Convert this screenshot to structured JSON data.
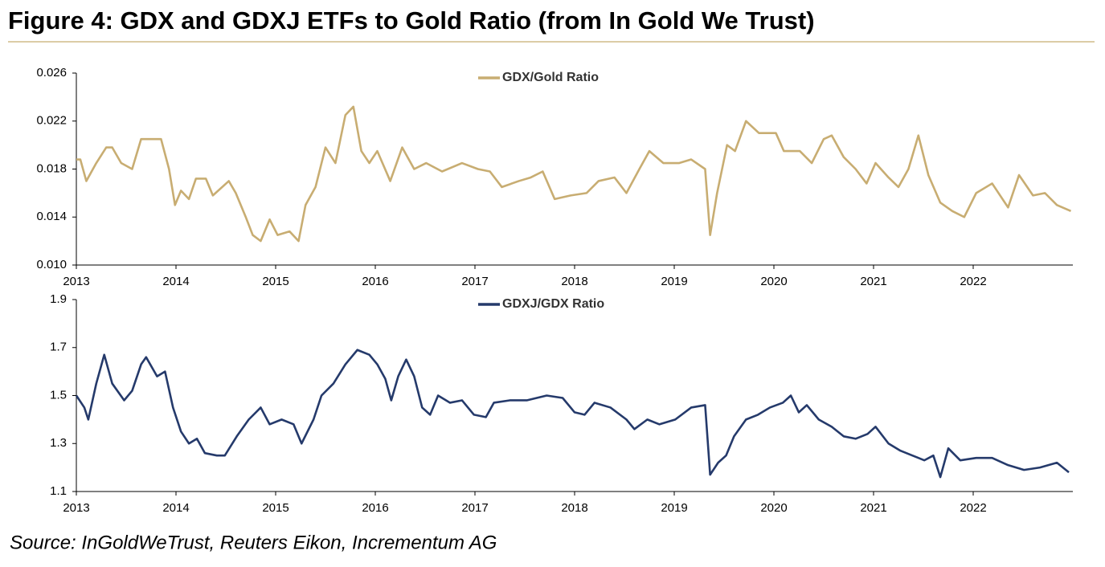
{
  "title": "Figure 4: GDX and GDXJ ETFs to Gold Ratio (from In Gold We Trust)",
  "source": "Source: InGoldWeTrust, Reuters Eikon, Incrementum AG",
  "chart_data": [
    {
      "type": "line",
      "x": [
        2013.0,
        2013.04,
        2013.1,
        2013.2,
        2013.3,
        2013.36,
        2013.45,
        2013.56,
        2013.65,
        2013.85,
        2013.93,
        2013.99,
        2014.05,
        2014.13,
        2014.2,
        2014.3,
        2014.37,
        2014.53,
        2014.6,
        2014.7,
        2014.77,
        2014.85,
        2014.94,
        2015.02,
        2015.14,
        2015.23,
        2015.3,
        2015.4,
        2015.5,
        2015.6,
        2015.7,
        2015.78,
        2015.86,
        2015.94,
        2016.02,
        2016.15,
        2016.27,
        2016.39,
        2016.51,
        2016.67,
        2016.87,
        2017.03,
        2017.15,
        2017.27,
        2017.44,
        2017.56,
        2017.68,
        2017.8,
        2017.96,
        2018.12,
        2018.24,
        2018.4,
        2018.52,
        2018.65,
        2018.75,
        2018.89,
        2019.05,
        2019.17,
        2019.31,
        2019.36,
        2019.43,
        2019.53,
        2019.61,
        2019.72,
        2019.85,
        2020.02,
        2020.1,
        2020.26,
        2020.38,
        2020.5,
        2020.58,
        2020.7,
        2020.82,
        2020.93,
        2021.02,
        2021.15,
        2021.25,
        2021.35,
        2021.45,
        2021.55,
        2021.67,
        2021.79,
        2021.91,
        2022.03,
        2022.19,
        2022.35,
        2022.46,
        2022.6,
        2022.72,
        2022.84,
        2022.98
      ],
      "series": [
        {
          "name": "GDX/Gold Ratio",
          "color": "#c8ad72",
          "values": [
            0.0188,
            0.0188,
            0.017,
            0.0185,
            0.0198,
            0.0198,
            0.0185,
            0.018,
            0.0205,
            0.0205,
            0.018,
            0.015,
            0.0162,
            0.0155,
            0.0172,
            0.0172,
            0.0158,
            0.017,
            0.016,
            0.014,
            0.0125,
            0.012,
            0.0138,
            0.0125,
            0.0128,
            0.012,
            0.015,
            0.0165,
            0.0198,
            0.0185,
            0.0225,
            0.0232,
            0.0195,
            0.0185,
            0.0195,
            0.017,
            0.0198,
            0.018,
            0.0185,
            0.0178,
            0.0185,
            0.018,
            0.0178,
            0.0165,
            0.017,
            0.0173,
            0.0178,
            0.0155,
            0.0158,
            0.016,
            0.017,
            0.0173,
            0.016,
            0.018,
            0.0195,
            0.0185,
            0.0185,
            0.0188,
            0.018,
            0.0125,
            0.016,
            0.02,
            0.0195,
            0.022,
            0.021,
            0.021,
            0.0195,
            0.0195,
            0.0185,
            0.0205,
            0.0208,
            0.019,
            0.018,
            0.0168,
            0.0185,
            0.0173,
            0.0165,
            0.018,
            0.0208,
            0.0175,
            0.0152,
            0.0145,
            0.014,
            0.016,
            0.0168,
            0.0148,
            0.0175,
            0.0158,
            0.016,
            0.015,
            0.0145
          ]
        }
      ],
      "xlim": [
        2013,
        2023
      ],
      "xticks": [
        2013,
        2014,
        2015,
        2016,
        2017,
        2018,
        2019,
        2020,
        2021,
        2022
      ],
      "ylim": [
        0.01,
        0.026
      ],
      "yticks": [
        {
          "value": 0.01,
          "label": "0.010"
        },
        0.014,
        0.018,
        0.022,
        0.026
      ],
      "grid": false,
      "legend": "top"
    },
    {
      "type": "line",
      "x": [
        2013.0,
        2013.08,
        2013.12,
        2013.2,
        2013.28,
        2013.36,
        2013.48,
        2013.56,
        2013.65,
        2013.7,
        2013.81,
        2013.89,
        2013.97,
        2014.05,
        2014.13,
        2014.21,
        2014.29,
        2014.41,
        2014.49,
        2014.61,
        2014.73,
        2014.85,
        2014.94,
        2015.06,
        2015.18,
        2015.26,
        2015.38,
        2015.46,
        2015.58,
        2015.7,
        2015.82,
        2015.94,
        2016.02,
        2016.1,
        2016.16,
        2016.23,
        2016.31,
        2016.39,
        2016.47,
        2016.55,
        2016.63,
        2016.75,
        2016.87,
        2016.99,
        2017.11,
        2017.19,
        2017.35,
        2017.52,
        2017.72,
        2017.88,
        2018.0,
        2018.1,
        2018.2,
        2018.36,
        2018.52,
        2018.6,
        2018.73,
        2018.85,
        2019.01,
        2019.17,
        2019.31,
        2019.36,
        2019.44,
        2019.52,
        2019.6,
        2019.72,
        2019.84,
        2019.96,
        2020.09,
        2020.17,
        2020.25,
        2020.33,
        2020.45,
        2020.58,
        2020.7,
        2020.82,
        2020.94,
        2021.02,
        2021.15,
        2021.27,
        2021.39,
        2021.51,
        2021.6,
        2021.67,
        2021.75,
        2021.87,
        2022.03,
        2022.19,
        2022.35,
        2022.51,
        2022.67,
        2022.84,
        2022.96
      ],
      "series": [
        {
          "name": "GDXJ/GDX Ratio",
          "color": "#253a6b",
          "values": [
            1.5,
            1.45,
            1.4,
            1.55,
            1.67,
            1.55,
            1.48,
            1.52,
            1.63,
            1.66,
            1.58,
            1.6,
            1.45,
            1.35,
            1.3,
            1.32,
            1.26,
            1.25,
            1.25,
            1.33,
            1.4,
            1.45,
            1.38,
            1.4,
            1.38,
            1.3,
            1.4,
            1.5,
            1.55,
            1.63,
            1.69,
            1.67,
            1.63,
            1.57,
            1.48,
            1.58,
            1.65,
            1.58,
            1.45,
            1.42,
            1.5,
            1.47,
            1.48,
            1.42,
            1.41,
            1.47,
            1.48,
            1.48,
            1.5,
            1.49,
            1.43,
            1.42,
            1.47,
            1.45,
            1.4,
            1.36,
            1.4,
            1.38,
            1.4,
            1.45,
            1.46,
            1.17,
            1.22,
            1.25,
            1.33,
            1.4,
            1.42,
            1.45,
            1.47,
            1.5,
            1.43,
            1.46,
            1.4,
            1.37,
            1.33,
            1.32,
            1.34,
            1.37,
            1.3,
            1.27,
            1.25,
            1.23,
            1.25,
            1.16,
            1.28,
            1.23,
            1.24,
            1.24,
            1.21,
            1.19,
            1.2,
            1.22,
            1.18
          ]
        }
      ],
      "xlim": [
        2013,
        2023
      ],
      "xticks": [
        2013,
        2014,
        2015,
        2016,
        2017,
        2018,
        2019,
        2020,
        2021,
        2022
      ],
      "ylim": [
        1.1,
        1.9
      ],
      "yticks": [
        1.1,
        1.3,
        1.5,
        1.7,
        1.9
      ],
      "grid": false,
      "legend": "top"
    }
  ]
}
